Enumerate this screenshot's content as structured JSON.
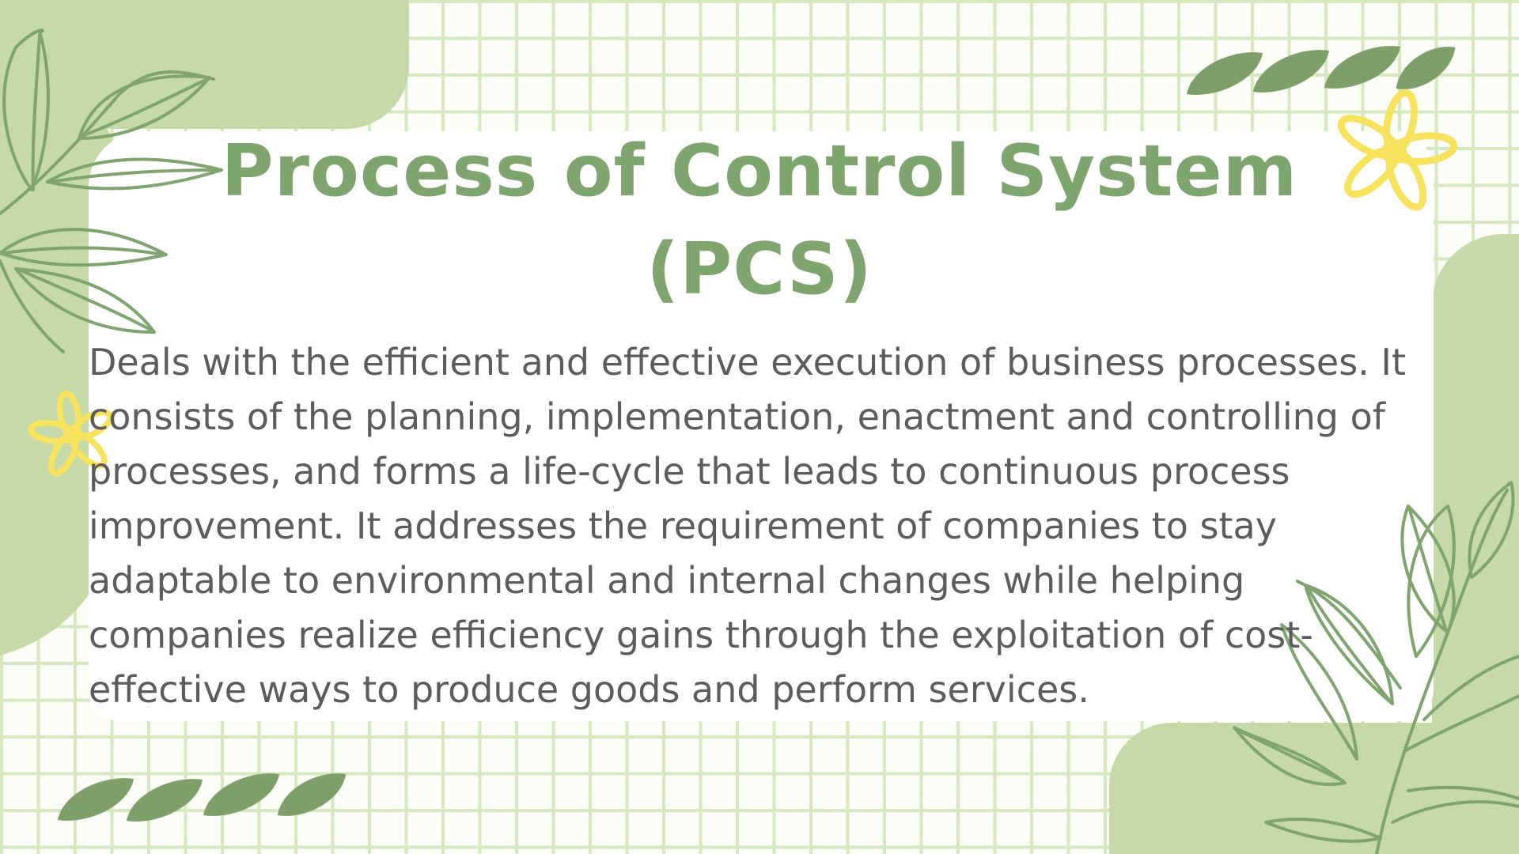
{
  "slide": {
    "title": "Process of Control System (PCS)",
    "body": "Deals with the efficient and effective execution of business processes. It consists of the planning, implementation, enactment and controlling of processes, and forms a life-cycle that leads to continuous process improvement. It addresses the requirement of companies to stay adaptable to environmental and internal changes while helping companies realize efficiency gains through the exploitation of cost-effective ways to produce goods and perform services."
  },
  "colors": {
    "background": "#fbfdf6",
    "grid_line": "#d6e8bd",
    "blob": "#c6d9a9",
    "card": "#ffffff",
    "title": "#7ea56d",
    "body_text": "#5c5c5c",
    "leaf_line": "#7ea56d",
    "leaf_solid": "#7da06a",
    "flower": "#f7e35e"
  },
  "decorations": {
    "icons": [
      "leaf-branch-icon",
      "leaf-icon",
      "flower-icon"
    ]
  }
}
